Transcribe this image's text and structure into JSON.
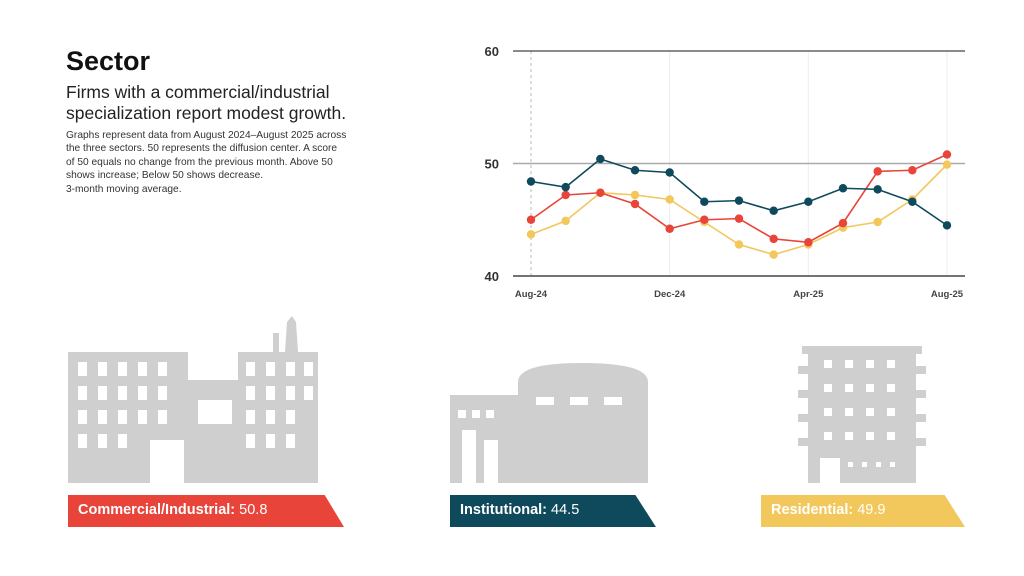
{
  "header": {
    "title": "Sector",
    "subtitle": "Firms with a commercial/industrial specialization report modest growth.",
    "description_lines": [
      "Graphs represent data from August 2024–August 2025 across",
      "the three sectors. 50 represents the diffusion center. A score",
      "of 50 equals no change from the previous month. Above 50",
      "shows increase; Below 50 shows decrease.",
      "3-month moving average."
    ]
  },
  "chart_data": {
    "type": "line",
    "x": [
      "Aug-24",
      "Sep-24",
      "Oct-24",
      "Nov-24",
      "Dec-24",
      "Jan-25",
      "Feb-25",
      "Mar-25",
      "Apr-25",
      "May-25",
      "Jun-25",
      "Jul-25",
      "Aug-25"
    ],
    "xticks": [
      "Aug-24",
      "Dec-24",
      "Apr-25",
      "Aug-25"
    ],
    "yticks": [
      "40",
      "50",
      "60"
    ],
    "ylim": [
      40,
      60
    ],
    "grid": "horizontal at 50 and 60; vertical at labeled months",
    "series": [
      {
        "key": "commercial",
        "color": "#e8443a",
        "values": [
          45.0,
          47.2,
          47.4,
          46.4,
          44.2,
          45.0,
          45.1,
          43.3,
          43.0,
          44.7,
          49.3,
          49.4,
          50.8
        ]
      },
      {
        "key": "institutional",
        "color": "#0f4a5c",
        "values": [
          48.4,
          47.9,
          50.4,
          49.4,
          49.2,
          46.6,
          46.7,
          45.8,
          46.6,
          47.8,
          47.7,
          46.6,
          44.5
        ]
      },
      {
        "key": "residential",
        "color": "#f2c75c",
        "values": [
          43.7,
          44.9,
          47.4,
          47.2,
          46.8,
          44.8,
          42.8,
          41.9,
          42.8,
          44.3,
          44.8,
          46.8,
          49.9
        ]
      }
    ]
  },
  "sectors": [
    {
      "label": "Commercial/Industrial:",
      "value": "50.8",
      "color": "#e8443a"
    },
    {
      "label": "Institutional:",
      "value": "44.5",
      "color": "#0f4a5c"
    },
    {
      "label": "Residential:",
      "value": "49.9",
      "color": "#f2c75c"
    }
  ],
  "building_color": "#cfcfcf"
}
